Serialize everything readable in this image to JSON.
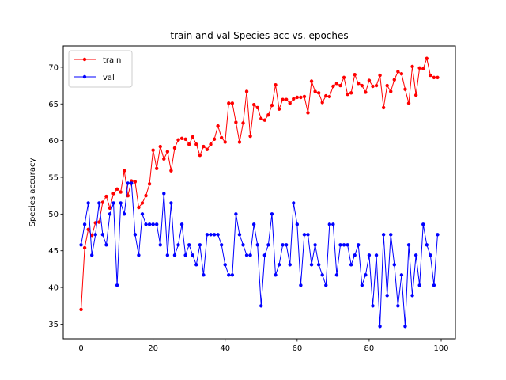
{
  "chart_data": {
    "type": "line",
    "title": "train and val Species acc vs. epoches",
    "xlabel": "",
    "ylabel": "Species accuracy",
    "xlim": [
      -4.95,
      103.95
    ],
    "ylim": [
      33.0,
      72.9
    ],
    "xticks": [
      0,
      20,
      40,
      60,
      80,
      100
    ],
    "yticks": [
      35,
      40,
      45,
      50,
      55,
      60,
      65,
      70
    ],
    "grid": false,
    "legend_position": "top-left",
    "x": [
      0,
      1,
      2,
      3,
      4,
      5,
      6,
      7,
      8,
      9,
      10,
      11,
      12,
      13,
      14,
      15,
      16,
      17,
      18,
      19,
      20,
      21,
      22,
      23,
      24,
      25,
      26,
      27,
      28,
      29,
      30,
      31,
      32,
      33,
      34,
      35,
      36,
      37,
      38,
      39,
      40,
      41,
      42,
      43,
      44,
      45,
      46,
      47,
      48,
      49,
      50,
      51,
      52,
      53,
      54,
      55,
      56,
      57,
      58,
      59,
      60,
      61,
      62,
      63,
      64,
      65,
      66,
      67,
      68,
      69,
      70,
      71,
      72,
      73,
      74,
      75,
      76,
      77,
      78,
      79,
      80,
      81,
      82,
      83,
      84,
      85,
      86,
      87,
      88,
      89,
      90,
      91,
      92,
      93,
      94,
      95,
      96,
      97,
      98,
      99
    ],
    "series": [
      {
        "name": "train",
        "color": "#ff0000",
        "values": [
          37.0,
          45.4,
          47.9,
          47.1,
          48.8,
          48.9,
          51.6,
          52.4,
          50.8,
          52.8,
          53.4,
          53.0,
          55.9,
          52.5,
          54.5,
          54.4,
          50.9,
          51.5,
          52.5,
          54.1,
          58.7,
          56.2,
          59.2,
          57.5,
          58.5,
          55.9,
          59.0,
          60.1,
          60.3,
          60.2,
          59.5,
          60.5,
          59.5,
          58.0,
          59.2,
          58.8,
          59.5,
          60.2,
          62.0,
          60.4,
          59.8,
          65.1,
          65.1,
          62.5,
          59.8,
          62.4,
          66.7,
          60.6,
          64.9,
          64.5,
          63.0,
          62.8,
          63.5,
          64.8,
          67.6,
          64.3,
          65.6,
          65.6,
          65.1,
          65.7,
          65.9,
          65.9,
          66.0,
          63.8,
          68.1,
          66.7,
          66.5,
          65.2,
          66.1,
          66.0,
          67.4,
          67.8,
          67.5,
          68.6,
          66.3,
          66.5,
          69.0,
          67.8,
          67.5,
          66.6,
          68.2,
          67.4,
          67.5,
          68.9,
          64.5,
          67.5,
          66.7,
          68.3,
          69.4,
          69.1,
          67.0,
          65.1,
          70.1,
          66.2,
          69.9,
          69.8,
          71.2,
          68.9,
          68.6,
          68.6
        ]
      },
      {
        "name": "val",
        "color": "#0000ff",
        "values": [
          45.8,
          48.6,
          51.5,
          44.4,
          47.2,
          51.5,
          47.2,
          45.8,
          50.0,
          51.5,
          40.3,
          51.5,
          50.0,
          54.2,
          54.2,
          47.2,
          44.4,
          50.0,
          48.6,
          48.6,
          48.6,
          48.6,
          45.8,
          52.8,
          44.4,
          51.5,
          44.4,
          45.8,
          48.6,
          44.4,
          45.8,
          44.4,
          43.1,
          45.8,
          41.7,
          47.2,
          47.2,
          47.2,
          47.2,
          45.8,
          43.1,
          41.7,
          41.7,
          50.0,
          47.2,
          45.8,
          44.4,
          44.4,
          48.6,
          45.8,
          37.5,
          44.4,
          45.8,
          50.0,
          41.7,
          43.1,
          45.8,
          45.8,
          43.1,
          51.5,
          48.6,
          40.3,
          47.2,
          47.2,
          43.1,
          45.8,
          43.1,
          41.7,
          40.3,
          48.6,
          48.6,
          41.7,
          45.8,
          45.8,
          45.8,
          43.1,
          44.4,
          45.8,
          40.3,
          41.7,
          44.4,
          37.5,
          44.4,
          34.7,
          47.2,
          38.9,
          47.2,
          43.1,
          37.5,
          41.7,
          34.7,
          45.8,
          38.9,
          44.4,
          40.3,
          48.6,
          45.8,
          44.4,
          40.3,
          47.2
        ]
      }
    ]
  }
}
